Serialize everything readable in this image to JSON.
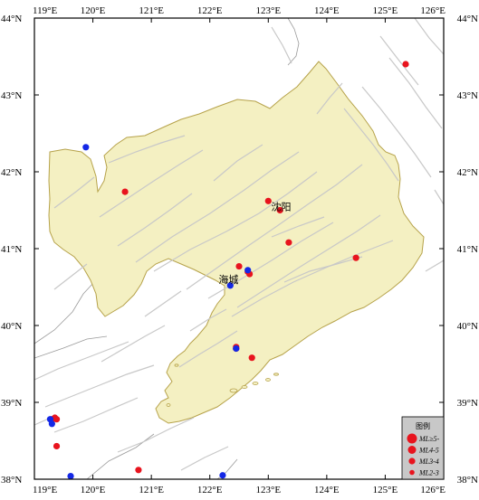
{
  "chart_data": {
    "type": "scatter",
    "xlim": [
      119,
      126
    ],
    "ylim": [
      38,
      44
    ],
    "x_ticks": [
      "119°E",
      "120°E",
      "121°E",
      "122°E",
      "123°E",
      "124°E",
      "125°E",
      "126°E"
    ],
    "y_ticks": [
      "38°N",
      "39°N",
      "40°N",
      "41°N",
      "42°N",
      "43°N",
      "44°N"
    ],
    "colors": {
      "land": "#f4f0c2",
      "coast": "#b6a24a",
      "fault": "#c8c8c8",
      "red_event": "#e8141e",
      "blue_event": "#1428e6",
      "legend_bg": "#c8c8c8"
    },
    "places": [
      {
        "name": "沈阳",
        "lon": 123.05,
        "lat": 41.55
      },
      {
        "name": "海城",
        "lon": 122.15,
        "lat": 40.6
      }
    ],
    "series": [
      {
        "color": "red",
        "points": [
          {
            "lon": 125.35,
            "lat": 43.4
          },
          {
            "lon": 120.55,
            "lat": 41.74
          },
          {
            "lon": 123.0,
            "lat": 41.62
          },
          {
            "lon": 123.2,
            "lat": 41.5
          },
          {
            "lon": 123.35,
            "lat": 41.08
          },
          {
            "lon": 124.5,
            "lat": 40.88
          },
          {
            "lon": 122.5,
            "lat": 40.77
          },
          {
            "lon": 122.65,
            "lat": 40.7
          },
          {
            "lon": 122.68,
            "lat": 40.67
          },
          {
            "lon": 122.45,
            "lat": 39.72
          },
          {
            "lon": 122.45,
            "lat": 39.7
          },
          {
            "lon": 122.72,
            "lat": 39.58
          },
          {
            "lon": 119.3,
            "lat": 38.78
          },
          {
            "lon": 119.35,
            "lat": 38.8
          },
          {
            "lon": 119.38,
            "lat": 38.78
          },
          {
            "lon": 119.38,
            "lat": 38.43
          },
          {
            "lon": 120.78,
            "lat": 38.12
          }
        ]
      },
      {
        "color": "blue",
        "points": [
          {
            "lon": 119.88,
            "lat": 42.32
          },
          {
            "lon": 122.65,
            "lat": 40.72
          },
          {
            "lon": 122.35,
            "lat": 40.52
          },
          {
            "lon": 122.45,
            "lat": 39.7
          },
          {
            "lon": 119.27,
            "lat": 38.78
          },
          {
            "lon": 119.3,
            "lat": 38.72
          },
          {
            "lon": 119.62,
            "lat": 38.04
          },
          {
            "lon": 122.22,
            "lat": 38.05
          }
        ]
      }
    ],
    "legend": {
      "title": "图例",
      "position": "bottom-right",
      "items": [
        {
          "label": "ML≥5-",
          "size_rank": 4
        },
        {
          "label": "ML4-5",
          "size_rank": 3
        },
        {
          "label": "ML3-4",
          "size_rank": 2
        },
        {
          "label": "ML2-3",
          "size_rank": 1
        }
      ]
    }
  }
}
